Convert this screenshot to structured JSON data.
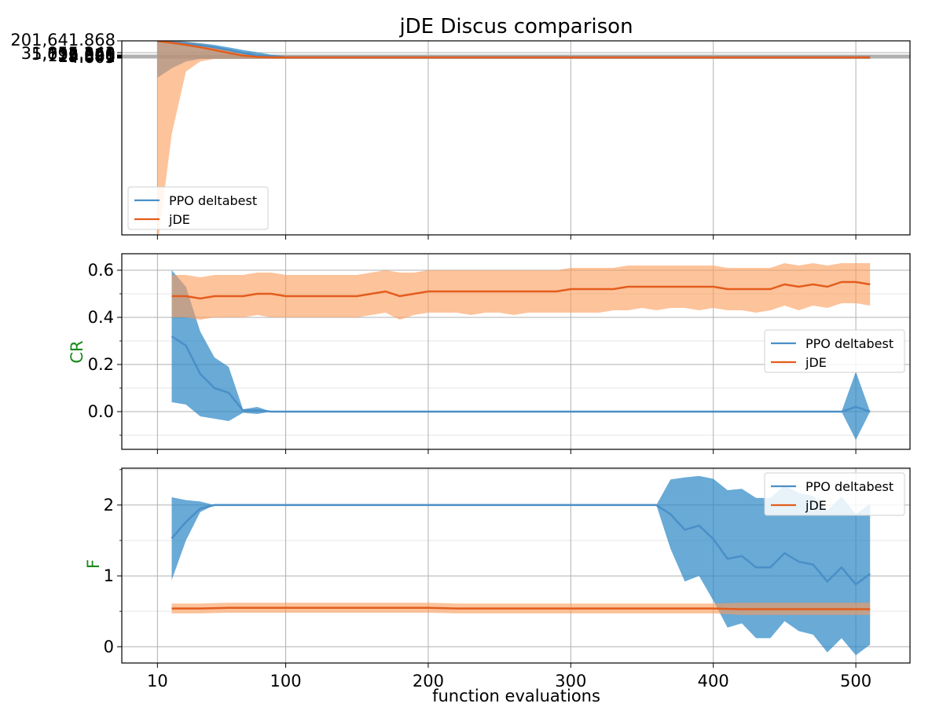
{
  "chart_data": [
    {
      "type": "line",
      "panel": "top",
      "title": "jDE Discus comparison",
      "xlabel": "",
      "ylabel": "",
      "x_ticks": [
        10,
        100,
        200,
        300,
        400,
        500
      ],
      "y_tick_labels": [
        "201,641.868",
        "31,855.243",
        "5,032.560",
        "795.028",
        "125.596",
        "19.841",
        "4.605"
      ],
      "legend": {
        "placement": "lower-left",
        "entries": [
          "PPO deltabest",
          "jDE"
        ]
      },
      "grid": true,
      "series": [
        {
          "name": "PPO deltabest",
          "color": "#4a8fc7",
          "x": [
            10,
            20,
            30,
            40,
            50,
            60,
            70,
            80,
            90,
            100,
            510
          ],
          "y": [
            190000,
            120000,
            70000,
            35000,
            15000,
            5000,
            1500,
            500,
            300,
            250,
            250
          ],
          "lower": [
            -300000,
            -150000,
            -40000,
            0,
            0,
            0,
            0,
            0,
            0,
            0,
            0
          ],
          "upper": [
            240000,
            210000,
            150000,
            80000,
            40000,
            15000,
            5000,
            2000,
            700,
            400,
            400
          ]
        },
        {
          "name": "jDE",
          "color": "#e35d1d",
          "x": [
            10,
            20,
            30,
            40,
            50,
            60,
            70,
            80,
            90,
            100,
            510
          ],
          "y": [
            190000,
            90000,
            40000,
            15000,
            5000,
            1500,
            500,
            300,
            250,
            250,
            250
          ],
          "lower": [
            -3000000,
            -1200000,
            -200000,
            -40000,
            0,
            0,
            0,
            0,
            0,
            0,
            0
          ],
          "upper": [
            280000,
            200000,
            130000,
            60000,
            20000,
            6000,
            1500,
            600,
            400,
            300,
            300
          ]
        }
      ]
    },
    {
      "type": "line",
      "panel": "middle",
      "xlabel": "",
      "ylabel": "CR",
      "ylim": [
        -0.16,
        0.67
      ],
      "y_ticks": [
        0.0,
        0.2,
        0.4,
        0.6
      ],
      "y_tick_labels": [
        "0.0",
        "0.2",
        "0.4",
        "0.6"
      ],
      "x_ticks": [
        10,
        100,
        200,
        300,
        400,
        500
      ],
      "legend": {
        "placement": "center-right",
        "entries": [
          "PPO deltabest",
          "jDE"
        ]
      },
      "grid": true,
      "series": [
        {
          "name": "PPO deltabest",
          "color": "#4a8fc7",
          "x": [
            20,
            30,
            40,
            50,
            60,
            70,
            80,
            90,
            100,
            150,
            200,
            250,
            300,
            350,
            400,
            450,
            480,
            490,
            500,
            510
          ],
          "y": [
            0.32,
            0.28,
            0.16,
            0.1,
            0.08,
            0.005,
            0.005,
            0.0,
            0.0,
            0.0,
            0.0,
            0.0,
            0.0,
            0.0,
            0.0,
            0.0,
            0.0,
            0.0,
            0.02,
            0.0
          ],
          "lower": [
            0.04,
            0.03,
            -0.02,
            -0.03,
            -0.04,
            -0.005,
            -0.01,
            0.0,
            0.0,
            0.0,
            0.0,
            0.0,
            0.0,
            0.0,
            0.0,
            0.0,
            0.0,
            0.0,
            -0.12,
            0.0
          ],
          "upper": [
            0.6,
            0.53,
            0.34,
            0.23,
            0.19,
            0.01,
            0.02,
            0.0,
            0.0,
            0.0,
            0.0,
            0.0,
            0.0,
            0.0,
            0.0,
            0.0,
            0.0,
            0.0,
            0.17,
            0.0
          ]
        },
        {
          "name": "jDE",
          "color": "#e35d1d",
          "x": [
            20,
            30,
            40,
            50,
            60,
            70,
            80,
            90,
            100,
            110,
            120,
            130,
            140,
            150,
            160,
            170,
            180,
            190,
            200,
            210,
            220,
            230,
            240,
            250,
            260,
            270,
            280,
            290,
            300,
            310,
            320,
            330,
            340,
            350,
            360,
            370,
            380,
            390,
            400,
            410,
            420,
            430,
            440,
            450,
            460,
            470,
            480,
            490,
            500,
            510
          ],
          "y": [
            0.49,
            0.49,
            0.48,
            0.49,
            0.49,
            0.49,
            0.5,
            0.5,
            0.49,
            0.49,
            0.49,
            0.49,
            0.49,
            0.49,
            0.5,
            0.51,
            0.49,
            0.5,
            0.51,
            0.51,
            0.51,
            0.51,
            0.51,
            0.51,
            0.51,
            0.51,
            0.51,
            0.51,
            0.52,
            0.52,
            0.52,
            0.52,
            0.53,
            0.53,
            0.53,
            0.53,
            0.53,
            0.53,
            0.53,
            0.52,
            0.52,
            0.52,
            0.52,
            0.54,
            0.53,
            0.54,
            0.53,
            0.55,
            0.55,
            0.54
          ],
          "lower": [
            0.4,
            0.4,
            0.39,
            0.4,
            0.4,
            0.4,
            0.41,
            0.4,
            0.4,
            0.4,
            0.4,
            0.4,
            0.4,
            0.4,
            0.41,
            0.42,
            0.39,
            0.41,
            0.42,
            0.42,
            0.42,
            0.41,
            0.42,
            0.42,
            0.41,
            0.42,
            0.42,
            0.42,
            0.42,
            0.42,
            0.42,
            0.43,
            0.43,
            0.44,
            0.43,
            0.44,
            0.44,
            0.43,
            0.44,
            0.43,
            0.43,
            0.42,
            0.43,
            0.45,
            0.43,
            0.45,
            0.44,
            0.46,
            0.46,
            0.45
          ],
          "upper": [
            0.58,
            0.58,
            0.57,
            0.58,
            0.58,
            0.58,
            0.59,
            0.59,
            0.58,
            0.58,
            0.58,
            0.58,
            0.58,
            0.58,
            0.59,
            0.6,
            0.59,
            0.59,
            0.6,
            0.6,
            0.6,
            0.6,
            0.6,
            0.6,
            0.6,
            0.6,
            0.6,
            0.6,
            0.61,
            0.61,
            0.61,
            0.61,
            0.62,
            0.62,
            0.62,
            0.62,
            0.62,
            0.62,
            0.62,
            0.61,
            0.61,
            0.61,
            0.61,
            0.63,
            0.62,
            0.63,
            0.62,
            0.63,
            0.63,
            0.63
          ]
        }
      ]
    },
    {
      "type": "line",
      "panel": "bottom",
      "xlabel": "function evaluations",
      "ylabel": "F",
      "ylim": [
        -0.23,
        2.52
      ],
      "y_ticks": [
        0,
        1,
        2
      ],
      "y_tick_labels": [
        "0",
        "1",
        "2"
      ],
      "x_ticks": [
        10,
        100,
        200,
        300,
        400,
        500
      ],
      "x_tick_labels": [
        "10",
        "100",
        "200",
        "300",
        "400",
        "500"
      ],
      "legend": {
        "placement": "top-right",
        "entries": [
          "PPO deltabest",
          "jDE"
        ]
      },
      "grid": true,
      "series": [
        {
          "name": "PPO deltabest",
          "color": "#4a8fc7",
          "x": [
            20,
            30,
            40,
            50,
            60,
            100,
            200,
            300,
            360,
            370,
            380,
            390,
            400,
            410,
            420,
            430,
            440,
            450,
            460,
            470,
            480,
            490,
            500,
            510
          ],
          "y": [
            1.53,
            1.76,
            1.95,
            2.0,
            2.0,
            2.0,
            2.0,
            2.0,
            2.0,
            1.87,
            1.65,
            1.71,
            1.52,
            1.24,
            1.28,
            1.12,
            1.12,
            1.32,
            1.2,
            1.16,
            0.92,
            1.12,
            0.88,
            1.03
          ],
          "lower": [
            0.94,
            1.5,
            1.9,
            2.0,
            2.0,
            2.0,
            2.0,
            2.0,
            2.0,
            1.38,
            0.92,
            1.0,
            0.65,
            0.27,
            0.33,
            0.12,
            0.12,
            0.36,
            0.22,
            0.17,
            -0.08,
            0.12,
            -0.12,
            0.03
          ],
          "upper": [
            2.11,
            2.07,
            2.05,
            2.0,
            2.0,
            2.0,
            2.0,
            2.0,
            2.0,
            2.36,
            2.39,
            2.41,
            2.37,
            2.21,
            2.23,
            2.1,
            2.1,
            2.28,
            2.17,
            2.13,
            1.92,
            2.12,
            1.87,
            2.02
          ]
        },
        {
          "name": "jDE",
          "color": "#e35d1d",
          "x": [
            20,
            40,
            60,
            80,
            100,
            120,
            140,
            160,
            180,
            200,
            220,
            240,
            260,
            280,
            300,
            320,
            340,
            360,
            380,
            400,
            420,
            440,
            460,
            480,
            500,
            510
          ],
          "y": [
            0.54,
            0.54,
            0.55,
            0.55,
            0.55,
            0.55,
            0.55,
            0.55,
            0.55,
            0.55,
            0.54,
            0.54,
            0.54,
            0.54,
            0.54,
            0.54,
            0.54,
            0.54,
            0.54,
            0.54,
            0.53,
            0.53,
            0.53,
            0.53,
            0.53,
            0.53
          ],
          "lower": [
            0.47,
            0.47,
            0.48,
            0.48,
            0.48,
            0.48,
            0.48,
            0.48,
            0.48,
            0.48,
            0.47,
            0.47,
            0.47,
            0.47,
            0.47,
            0.47,
            0.47,
            0.47,
            0.47,
            0.47,
            0.45,
            0.45,
            0.45,
            0.45,
            0.45,
            0.45
          ],
          "upper": [
            0.61,
            0.61,
            0.62,
            0.62,
            0.62,
            0.62,
            0.62,
            0.62,
            0.62,
            0.62,
            0.61,
            0.61,
            0.61,
            0.61,
            0.61,
            0.61,
            0.61,
            0.61,
            0.61,
            0.61,
            0.62,
            0.62,
            0.62,
            0.62,
            0.62,
            0.62
          ]
        }
      ]
    }
  ]
}
